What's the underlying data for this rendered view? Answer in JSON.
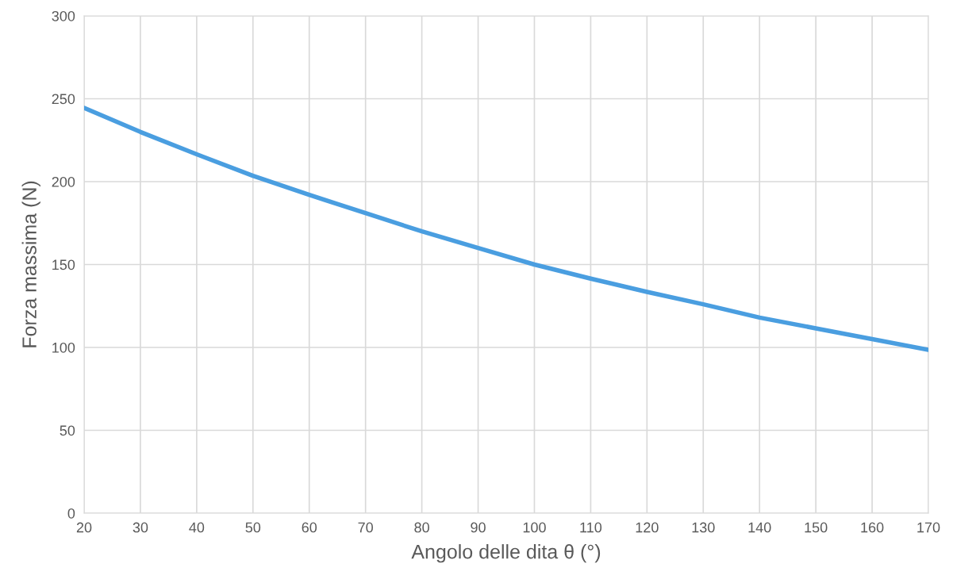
{
  "chart_data": {
    "type": "line",
    "xlabel": "Angolo delle dita θ (°)",
    "ylabel": "Forza massima (N)",
    "x": [
      20,
      30,
      40,
      50,
      60,
      70,
      80,
      90,
      100,
      110,
      120,
      130,
      140,
      150,
      160,
      170
    ],
    "series": [
      {
        "color": "#4a9ee0",
        "values": [
          244.5,
          230,
          216.5,
          203.5,
          192,
          181,
          170,
          160,
          150,
          141.5,
          133.5,
          126,
          118,
          111.5,
          105,
          98.5
        ]
      }
    ],
    "xlim": [
      20,
      170
    ],
    "xticks": [
      20,
      30,
      40,
      50,
      60,
      70,
      80,
      90,
      100,
      110,
      120,
      130,
      140,
      150,
      160,
      170
    ],
    "ylim": [
      0,
      300
    ],
    "yticks": [
      0,
      50,
      100,
      150,
      200,
      250,
      300
    ],
    "grid": true,
    "marker": "none",
    "line_style": "solid",
    "legend": false
  }
}
